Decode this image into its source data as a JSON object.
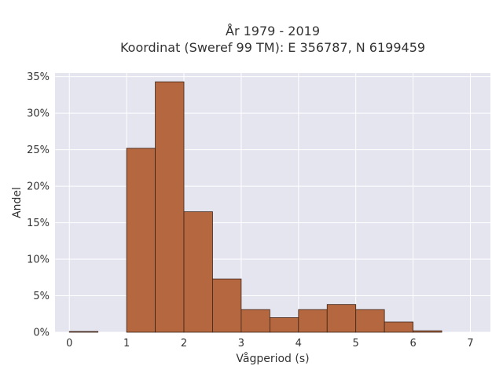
{
  "chart_data": {
    "type": "bar",
    "title": [
      "År 1979 - 2019",
      "Koordinat (Sweref 99 TM): E 356787, N 6199459"
    ],
    "xlabel": "Vågperiod (s)",
    "ylabel": "Andel",
    "xlim": [
      -0.25,
      7.35
    ],
    "ylim": [
      0,
      0.355
    ],
    "xticks": [
      0,
      1,
      2,
      3,
      4,
      5,
      6,
      7
    ],
    "yticks": [
      0,
      0.05,
      0.1,
      0.15,
      0.2,
      0.25,
      0.3,
      0.35
    ],
    "ytick_format": "percent",
    "bin_width": 0.5,
    "bins": [
      {
        "start": 0.0,
        "value": 0.001
      },
      {
        "start": 0.5,
        "value": 0.0
      },
      {
        "start": 1.0,
        "value": 0.252
      },
      {
        "start": 1.5,
        "value": 0.343
      },
      {
        "start": 2.0,
        "value": 0.165
      },
      {
        "start": 2.5,
        "value": 0.073
      },
      {
        "start": 3.0,
        "value": 0.031
      },
      {
        "start": 3.5,
        "value": 0.02
      },
      {
        "start": 4.0,
        "value": 0.031
      },
      {
        "start": 4.5,
        "value": 0.038
      },
      {
        "start": 5.0,
        "value": 0.031
      },
      {
        "start": 5.5,
        "value": 0.014
      },
      {
        "start": 6.0,
        "value": 0.002
      },
      {
        "start": 6.5,
        "value": 0.0
      }
    ],
    "grid": true,
    "bar_color": "#b5683f",
    "bar_edge_color": "#3b2418",
    "plot_background": "#e5e5f0"
  }
}
